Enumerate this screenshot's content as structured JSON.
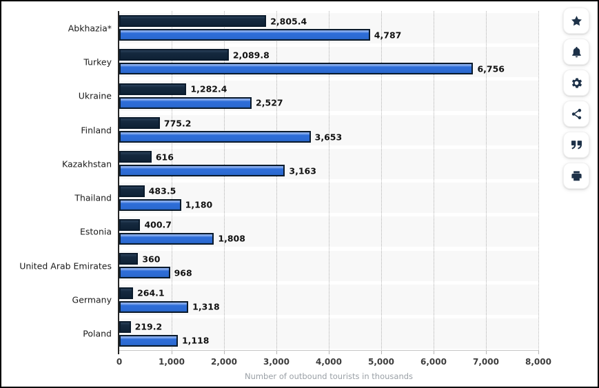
{
  "frame": {
    "border_color": "#000000",
    "background": "#ffffff"
  },
  "chart_data": {
    "type": "bar",
    "orientation": "horizontal",
    "xlabel": "Number of outbound tourists in thousands",
    "xlim": [
      0,
      8000
    ],
    "x_tick_labels": [
      "0",
      "1,000",
      "2,000",
      "3,000",
      "4,000",
      "5,000",
      "6,000",
      "7,000",
      "8,000"
    ],
    "grid": "vertical-dotted",
    "legend": "none",
    "categories": [
      "Abkhazia*",
      "Turkey",
      "Ukraine",
      "Finland",
      "Kazakhstan",
      "Thailand",
      "Estonia",
      "United Arab Emirates",
      "Germany",
      "Poland"
    ],
    "series": [
      {
        "name": "dark-navy-series",
        "color": "#13283f",
        "values": [
          2805.4,
          2089.8,
          1282.4,
          775.2,
          616,
          483.5,
          400.7,
          360,
          264.1,
          219.2
        ],
        "labels": [
          "2,805.4",
          "2,089.8",
          "1,282.4",
          "775.2",
          "616",
          "483.5",
          "400.7",
          "360",
          "264.1",
          "219.2"
        ]
      },
      {
        "name": "blue-series",
        "color": "#2e6ed9",
        "values": [
          4787,
          6756,
          2527,
          3653,
          3163,
          1180,
          1808,
          968,
          1318,
          1118
        ],
        "labels": [
          "4,787",
          "6,756",
          "2,527",
          "3,653",
          "3,163",
          "1,180",
          "1,808",
          "968",
          "1,318",
          "1,118"
        ]
      }
    ]
  },
  "sidebar": {
    "buttons": [
      {
        "name": "Favorite",
        "icon": "star-icon"
      },
      {
        "name": "Notifications",
        "icon": "bell-icon"
      },
      {
        "name": "Settings",
        "icon": "gear-icon"
      },
      {
        "name": "Share",
        "icon": "share-icon"
      },
      {
        "name": "Cite",
        "icon": "quote-icon"
      },
      {
        "name": "Print",
        "icon": "printer-icon"
      }
    ]
  },
  "colors": {
    "bar_dark": "#13283f",
    "bar_blue": "#2e6ed9",
    "bar_border": "#0a1a2b",
    "gridline": "#b4b4b4",
    "axis_line": "#252525",
    "tick_label": "#3d3d3d",
    "axis_title": "#9aa0a6",
    "icon": "#1d3148"
  }
}
